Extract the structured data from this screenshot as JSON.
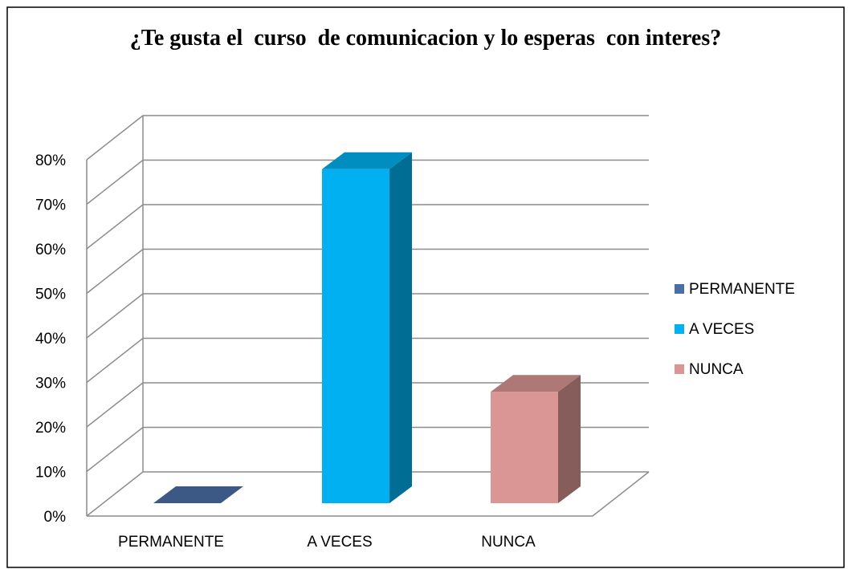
{
  "chart_data": {
    "type": "bar3d",
    "title": "¿Te gusta el  curso  de comunicacion y lo esperas  con interes?",
    "categories": [
      "PERMANENTE",
      "A VECES",
      "NUNCA"
    ],
    "values": [
      0,
      75,
      25
    ],
    "value_unit": "%",
    "colors": [
      "#4a6fa5",
      "#00b0f0",
      "#d99694"
    ],
    "ylim": [
      0,
      80
    ],
    "yticks": [
      {
        "value": 0,
        "label": "0%"
      },
      {
        "value": 10,
        "label": "10%"
      },
      {
        "value": 20,
        "label": "20%"
      },
      {
        "value": 30,
        "label": "30%"
      },
      {
        "value": 40,
        "label": "40%"
      },
      {
        "value": 50,
        "label": "50%"
      },
      {
        "value": 60,
        "label": "60%"
      },
      {
        "value": 70,
        "label": "70%"
      },
      {
        "value": 80,
        "label": "80%"
      }
    ],
    "grid": true,
    "legend": "right"
  }
}
